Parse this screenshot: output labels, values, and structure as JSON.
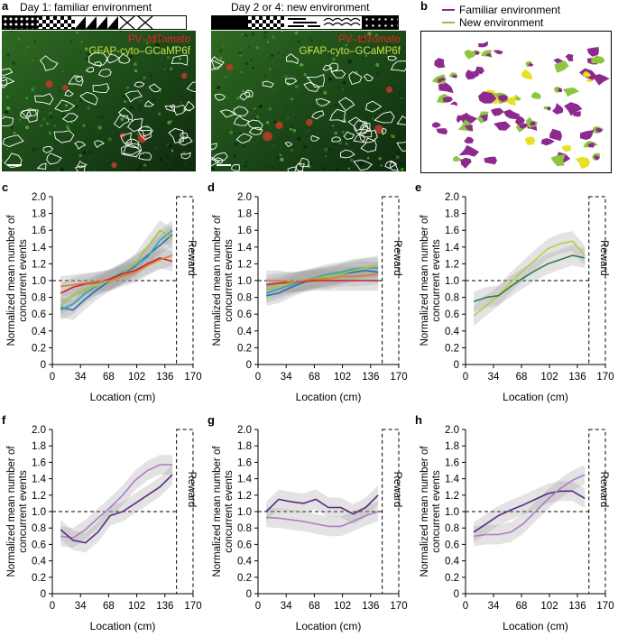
{
  "panel_letters": {
    "a": "a",
    "b": "b",
    "c": "c",
    "d": "d",
    "e": "e",
    "f": "f",
    "g": "g",
    "h": "h"
  },
  "panel_a": {
    "title_left": "Day 1: familiar environment",
    "title_right": "Day 2 or 4: new environment",
    "label_red": "PV–tdTomato",
    "label_green": "GFAP-cyto–GCaMP6f"
  },
  "panel_b": {
    "legend": [
      {
        "label": "Familiar environment",
        "color": "#8e2a8f"
      },
      {
        "label": "New environment",
        "color": "#8cc63f"
      }
    ]
  },
  "colors": {
    "purple_dark": "#5b2a80",
    "purple_light": "#b07cc6",
    "green_light": "#b5cf3b",
    "green_dark": "#2e7d45",
    "blue": "#2a6db5",
    "teal": "#2aa7b4",
    "orange": "#e07a2a",
    "red": "#d0202a",
    "grey_band": "#c8c8c8"
  },
  "chart_data": [
    {
      "panel": "c",
      "type": "line",
      "xlabel": "Location (cm)",
      "ylabel": "Normalized mean number of concurrent events",
      "xticks": [
        "0",
        "34",
        "68",
        "102",
        "136",
        "170"
      ],
      "yticks": [
        "0",
        "0.2",
        "0.4",
        "0.6",
        "0.8",
        "1.0",
        "1.2",
        "1.4",
        "1.6",
        "1.8",
        "2.0"
      ],
      "xlim": [
        0,
        170
      ],
      "ylim": [
        0,
        2.0
      ],
      "reference_line": 1.0,
      "reward_label": "Reward",
      "reward_zone": [
        150,
        170
      ],
      "series": [
        {
          "name": "blue",
          "color": "#2a6db5",
          "x": [
            10,
            25,
            40,
            55,
            70,
            85,
            100,
            115,
            130,
            145
          ],
          "y": [
            0.68,
            0.65,
            0.78,
            0.9,
            1.0,
            1.08,
            1.17,
            1.3,
            1.42,
            1.55
          ]
        },
        {
          "name": "teal",
          "color": "#2aa7b4",
          "x": [
            10,
            25,
            40,
            55,
            70,
            85,
            100,
            115,
            130,
            145
          ],
          "y": [
            0.65,
            0.72,
            0.85,
            0.95,
            1.02,
            1.1,
            1.18,
            1.28,
            1.48,
            1.6
          ]
        },
        {
          "name": "green-yellow",
          "color": "#a8c43a",
          "x": [
            10,
            25,
            40,
            55,
            70,
            85,
            100,
            115,
            130,
            145
          ],
          "y": [
            0.7,
            0.82,
            0.9,
            0.95,
            1.0,
            1.08,
            1.2,
            1.4,
            1.6,
            1.5
          ]
        },
        {
          "name": "red",
          "color": "#d0202a",
          "x": [
            10,
            25,
            40,
            55,
            70,
            85,
            100,
            115,
            130,
            145
          ],
          "y": [
            0.85,
            0.92,
            0.96,
            0.98,
            1.02,
            1.08,
            1.12,
            1.2,
            1.27,
            1.23
          ]
        },
        {
          "name": "orange",
          "color": "#e07a2a",
          "x": [
            10,
            25,
            40,
            55,
            70,
            85,
            100,
            115,
            130,
            145
          ],
          "y": [
            0.93,
            0.95,
            0.97,
            0.99,
            1.0,
            1.05,
            1.1,
            1.18,
            1.25,
            1.3
          ]
        }
      ]
    },
    {
      "panel": "d",
      "type": "line",
      "xlabel": "Location (cm)",
      "ylabel": "Normalized mean number of concurrent events",
      "xticks": [
        "0",
        "34",
        "68",
        "102",
        "136",
        "170"
      ],
      "yticks": [
        "0",
        "0.2",
        "0.4",
        "0.6",
        "0.8",
        "1.0",
        "1.2",
        "1.4",
        "1.6",
        "1.8",
        "2.0"
      ],
      "xlim": [
        0,
        170
      ],
      "ylim": [
        0,
        2.0
      ],
      "reference_line": 1.0,
      "reward_label": "Reward",
      "reward_zone": [
        150,
        170
      ],
      "series": [
        {
          "name": "blue",
          "color": "#2a6db5",
          "x": [
            10,
            25,
            40,
            55,
            70,
            85,
            100,
            115,
            130,
            145
          ],
          "y": [
            0.82,
            0.85,
            0.92,
            0.98,
            1.02,
            1.05,
            1.08,
            1.1,
            1.12,
            1.1
          ]
        },
        {
          "name": "teal",
          "color": "#2aa7b4",
          "x": [
            10,
            25,
            40,
            55,
            70,
            85,
            100,
            115,
            130,
            145
          ],
          "y": [
            0.85,
            0.9,
            0.95,
            1.0,
            1.04,
            1.08,
            1.1,
            1.14,
            1.15,
            1.15
          ]
        },
        {
          "name": "green-yellow",
          "color": "#a8c43a",
          "x": [
            10,
            25,
            40,
            55,
            70,
            85,
            100,
            115,
            130,
            145
          ],
          "y": [
            0.9,
            0.93,
            0.97,
            1.0,
            1.03,
            1.05,
            1.08,
            1.12,
            1.15,
            1.18
          ]
        },
        {
          "name": "red",
          "color": "#d0202a",
          "x": [
            10,
            25,
            40,
            55,
            70,
            85,
            100,
            115,
            130,
            145
          ],
          "y": [
            0.95,
            0.97,
            0.98,
            0.99,
            1.0,
            1.0,
            1.0,
            1.0,
            1.0,
            1.0
          ]
        },
        {
          "name": "orange",
          "color": "#e07a2a",
          "x": [
            10,
            25,
            40,
            55,
            70,
            85,
            100,
            115,
            130,
            145
          ],
          "y": [
            1.0,
            1.0,
            0.98,
            1.0,
            1.02,
            1.02,
            1.05,
            1.05,
            1.06,
            1.08
          ]
        }
      ]
    },
    {
      "panel": "e",
      "type": "line",
      "xlabel": "Location (cm)",
      "ylabel": "Normalized mean number of concurrent events",
      "xticks": [
        "0",
        "34",
        "68",
        "102",
        "136",
        "170"
      ],
      "yticks": [
        "0",
        "0.2",
        "0.4",
        "0.6",
        "0.8",
        "1.0",
        "1.2",
        "1.4",
        "1.6",
        "1.8",
        "2.0"
      ],
      "xlim": [
        0,
        170
      ],
      "ylim": [
        0,
        2.0
      ],
      "reference_line": 1.0,
      "reward_label": "Reward",
      "reward_zone": [
        150,
        170
      ],
      "series": [
        {
          "name": "yellow-green",
          "color": "#b5cf3b",
          "x": [
            10,
            25,
            40,
            55,
            70,
            85,
            100,
            115,
            130,
            145
          ],
          "y": [
            0.58,
            0.7,
            0.82,
            0.98,
            1.12,
            1.25,
            1.38,
            1.44,
            1.47,
            1.3
          ]
        },
        {
          "name": "dark-green",
          "color": "#2e7d45",
          "x": [
            10,
            25,
            40,
            55,
            70,
            85,
            100,
            115,
            130,
            145
          ],
          "y": [
            0.75,
            0.8,
            0.82,
            0.93,
            1.03,
            1.12,
            1.2,
            1.25,
            1.3,
            1.27
          ]
        }
      ]
    },
    {
      "panel": "f",
      "type": "line",
      "xlabel": "Location (cm)",
      "ylabel": "Normalized mean number of concurrent events",
      "xticks": [
        "0",
        "34",
        "68",
        "102",
        "136",
        "170"
      ],
      "yticks": [
        "0",
        "0.2",
        "0.4",
        "0.6",
        "0.8",
        "1.0",
        "1.2",
        "1.4",
        "1.6",
        "1.8",
        "2.0"
      ],
      "xlim": [
        0,
        170
      ],
      "ylim": [
        0,
        2.0
      ],
      "reference_line": 1.0,
      "reward_label": "Reward",
      "reward_zone": [
        150,
        170
      ],
      "series": [
        {
          "name": "light-purple",
          "color": "#b07cc6",
          "x": [
            10,
            25,
            40,
            55,
            70,
            85,
            100,
            115,
            130,
            145
          ],
          "y": [
            0.7,
            0.68,
            0.78,
            0.92,
            1.05,
            1.2,
            1.38,
            1.5,
            1.57,
            1.57
          ]
        },
        {
          "name": "dark-purple",
          "color": "#5b2a80",
          "x": [
            10,
            25,
            40,
            55,
            70,
            85,
            100,
            115,
            130,
            145
          ],
          "y": [
            0.78,
            0.65,
            0.62,
            0.75,
            0.95,
            1.0,
            1.1,
            1.2,
            1.3,
            1.45
          ]
        }
      ]
    },
    {
      "panel": "g",
      "type": "line",
      "xlabel": "Location (cm)",
      "ylabel": "Normalized mean number of concurrent events",
      "xticks": [
        "0",
        "34",
        "68",
        "102",
        "136",
        "170"
      ],
      "yticks": [
        "0",
        "0.2",
        "0.4",
        "0.6",
        "0.8",
        "1.0",
        "1.2",
        "1.4",
        "1.6",
        "1.8",
        "2.0"
      ],
      "xlim": [
        0,
        170
      ],
      "ylim": [
        0,
        2.0
      ],
      "reference_line": 1.0,
      "reward_label": "Reward",
      "reward_zone": [
        150,
        170
      ],
      "series": [
        {
          "name": "dark-purple",
          "color": "#5b2a80",
          "x": [
            10,
            25,
            40,
            55,
            70,
            85,
            100,
            115,
            130,
            145
          ],
          "y": [
            1.0,
            1.15,
            1.12,
            1.1,
            1.15,
            1.05,
            1.05,
            0.97,
            1.05,
            1.2
          ]
        },
        {
          "name": "light-purple",
          "color": "#b07cc6",
          "x": [
            10,
            25,
            40,
            55,
            70,
            85,
            100,
            115,
            130,
            145
          ],
          "y": [
            0.93,
            0.92,
            0.9,
            0.88,
            0.85,
            0.82,
            0.82,
            0.88,
            0.95,
            1.0
          ]
        }
      ]
    },
    {
      "panel": "h",
      "type": "line",
      "xlabel": "Location (cm)",
      "ylabel": "Normalized mean number of concurrent events",
      "xticks": [
        "0",
        "34",
        "68",
        "102",
        "136",
        "170"
      ],
      "yticks": [
        "0",
        "0.2",
        "0.4",
        "0.6",
        "0.8",
        "1.0",
        "1.2",
        "1.4",
        "1.6",
        "1.8",
        "2.0"
      ],
      "xlim": [
        0,
        170
      ],
      "ylim": [
        0,
        2.0
      ],
      "reference_line": 1.0,
      "reward_label": "Reward",
      "reward_zone": [
        150,
        170
      ],
      "series": [
        {
          "name": "dark-purple",
          "color": "#5b2a80",
          "x": [
            10,
            25,
            40,
            55,
            70,
            85,
            100,
            115,
            130,
            145
          ],
          "y": [
            0.75,
            0.85,
            0.95,
            1.02,
            1.08,
            1.15,
            1.22,
            1.25,
            1.25,
            1.16
          ]
        },
        {
          "name": "light-purple",
          "color": "#b07cc6",
          "x": [
            10,
            25,
            40,
            55,
            70,
            85,
            100,
            115,
            130,
            145
          ],
          "y": [
            0.7,
            0.72,
            0.72,
            0.75,
            0.85,
            1.0,
            1.15,
            1.28,
            1.38,
            1.45
          ]
        }
      ]
    }
  ]
}
